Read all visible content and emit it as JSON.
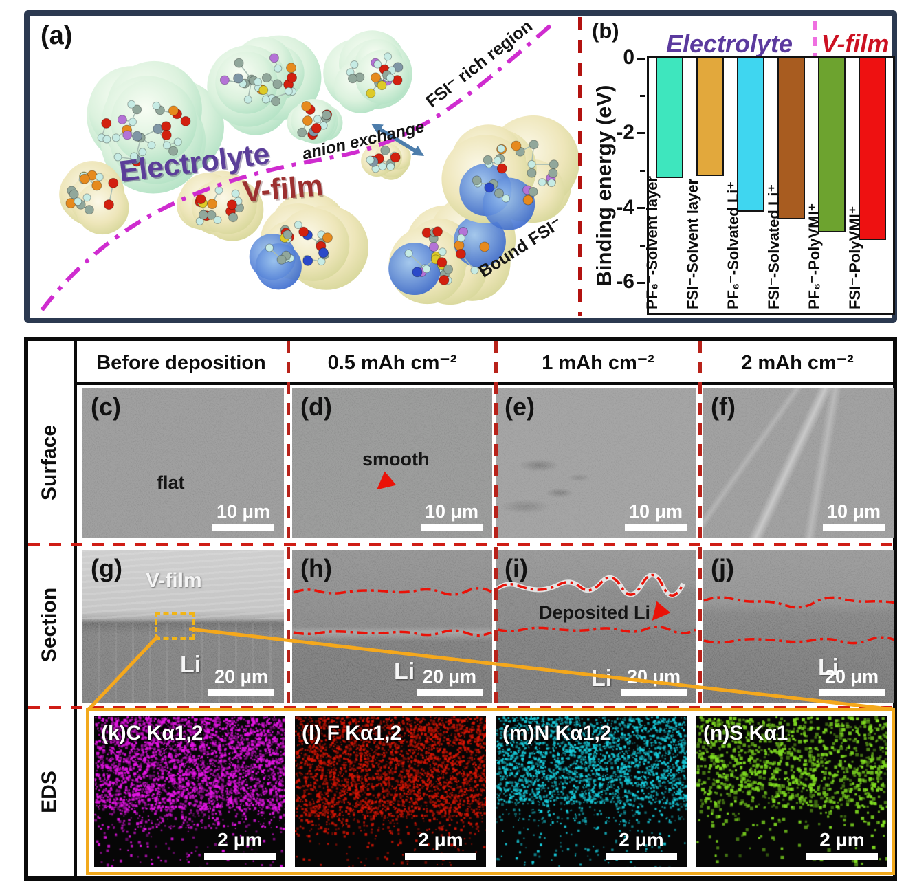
{
  "panel_a": {
    "label": "(a)",
    "electrolyte": "Electrolyte",
    "v_film": "V-film",
    "anion_exchange": "anion exchange",
    "fsi_rich_region": "FSI⁻ rich region",
    "bound_fsi": "Bound FSI⁻",
    "divider_color": "#b31310",
    "region_line_color": "#cf2ccf"
  },
  "panel_b": {
    "label": "(b)",
    "group_electrolyte": "Electrolyte",
    "group_vfilm": "V-film",
    "electrolyte_color": "#5b3a9e",
    "vfilm_color": "#cc1122",
    "group_divider_color": "#ef6fe0"
  },
  "chart_data": {
    "type": "bar",
    "title": "",
    "ylabel": "Binding energy (eV)",
    "xlabel": "",
    "ylim": [
      -6.8,
      0
    ],
    "yticks": [
      0,
      -2,
      -4,
      -6
    ],
    "minor_ticks": [
      -1,
      -3,
      -5
    ],
    "categories": [
      "PF₆⁻-Solvent layer",
      "FSI⁻-Solvent layer",
      "PF₆⁻-Solvated Li⁺",
      "FSI⁻-Solvated Li⁺",
      "PF₆⁻-PolyVMI⁺",
      "FSI⁻-PolyVMI⁺"
    ],
    "values": [
      -3.2,
      -3.15,
      -4.1,
      -4.3,
      -4.65,
      -4.85
    ],
    "bar_colors": [
      "#3ee6be",
      "#e2a83c",
      "#3fd6f0",
      "#a85c20",
      "#6da32f",
      "#ee1111"
    ],
    "groups": [
      {
        "name": "Electrolyte",
        "bar_indices": [
          0,
          1,
          2,
          3
        ]
      },
      {
        "name": "V-film",
        "bar_indices": [
          4,
          5
        ]
      }
    ],
    "grid": false,
    "legend": "none"
  },
  "table": {
    "col_headers": [
      "Before deposition",
      "0.5 mAh cm⁻²",
      "1 mAh cm⁻²",
      "2 mAh cm⁻²"
    ],
    "row_headers": [
      "Surface",
      "Section",
      "EDS"
    ],
    "surface": [
      {
        "label": "(c)",
        "annotation": "flat",
        "scale": "10 μm"
      },
      {
        "label": "(d)",
        "annotation": "smooth",
        "scale": "10 μm"
      },
      {
        "label": "(e)",
        "annotation": "",
        "scale": "10 μm"
      },
      {
        "label": "(f)",
        "annotation": "",
        "scale": "10 μm"
      }
    ],
    "section": [
      {
        "label": "(g)",
        "film_label": "V-film",
        "li_label": "Li",
        "scale": "20 μm"
      },
      {
        "label": "(h)",
        "li_label": "Li",
        "scale": "20 μm"
      },
      {
        "label": "(i)",
        "annotation": "Deposited Li",
        "li_label": "Li",
        "scale": "20 μm"
      },
      {
        "label": "(j)",
        "li_label": "Li",
        "scale": "20 μm"
      }
    ],
    "eds": [
      {
        "title": "(k)C Kα1,2",
        "scale": "2 μm",
        "color": "#e614e6",
        "dots": 5200,
        "dense": 0.62,
        "size": [
          1.6,
          4.2
        ],
        "seed": 11
      },
      {
        "title": "(l) F Kα1,2",
        "scale": "2 μm",
        "color": "#d81505",
        "dots": 4600,
        "dense": 0.66,
        "size": [
          1.6,
          4.0
        ],
        "seed": 22
      },
      {
        "title": "(m)N Kα1,2",
        "scale": "2 μm",
        "color": "#17cfdf",
        "dots": 4200,
        "dense": 0.58,
        "size": [
          1.6,
          4.0
        ],
        "seed": 33
      },
      {
        "title": "(n)S Kα1",
        "scale": "2 μm",
        "color": "#7fdc20",
        "dots": 1900,
        "dense": 0.6,
        "size": [
          2.6,
          5.4
        ],
        "seed": 44
      }
    ],
    "box_color": "#f2a91c",
    "divider_color": "#cf1d15"
  }
}
